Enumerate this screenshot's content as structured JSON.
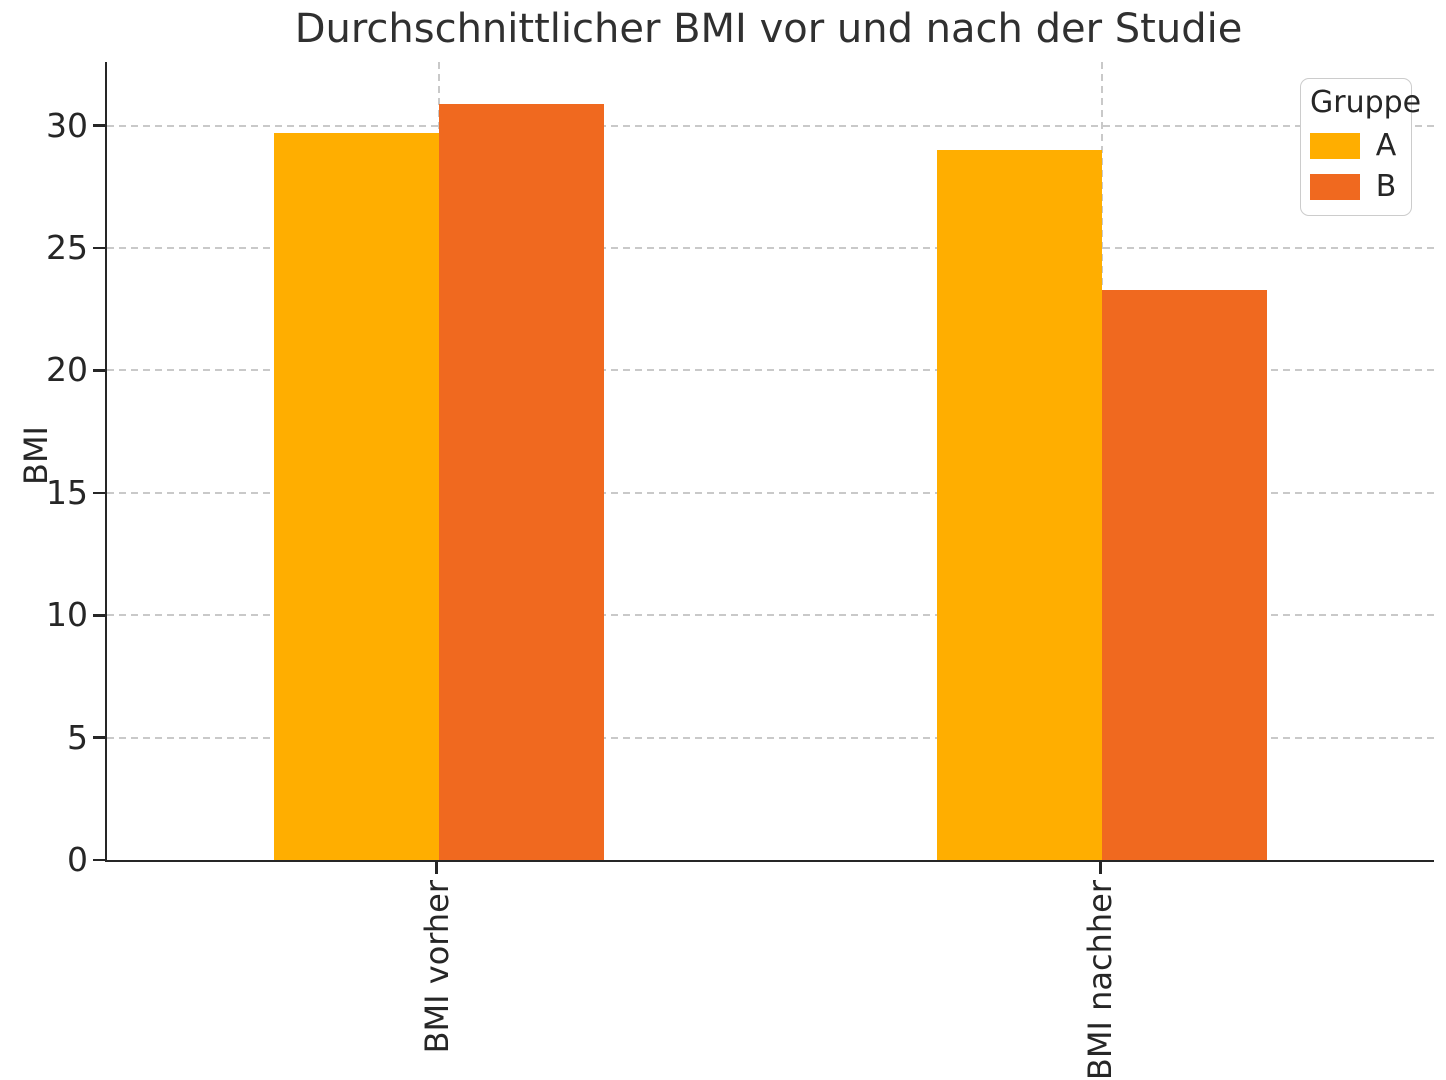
{
  "chart_data": {
    "type": "bar",
    "title": "Durchschnittlicher BMI vor und nach der Studie",
    "xlabel": "",
    "ylabel": "BMI",
    "categories": [
      "BMI vorher",
      "BMI nachher"
    ],
    "series": [
      {
        "name": "A",
        "color": "#FFAE00",
        "values": [
          29.7,
          29.0
        ]
      },
      {
        "name": "B",
        "color": "#F0691F",
        "values": [
          30.9,
          23.3
        ]
      }
    ],
    "ylim": [
      0,
      32.6
    ],
    "yticks": [
      0,
      5,
      10,
      15,
      20,
      25,
      30
    ],
    "grid": "dashed-horizontal-and-category-vertical",
    "legend": {
      "title": "Gruppe",
      "position": "upper right"
    },
    "colors": {
      "text": "#262626",
      "spine": "#262626",
      "gridline": "#c9c9c9",
      "background": "#ffffff"
    }
  }
}
